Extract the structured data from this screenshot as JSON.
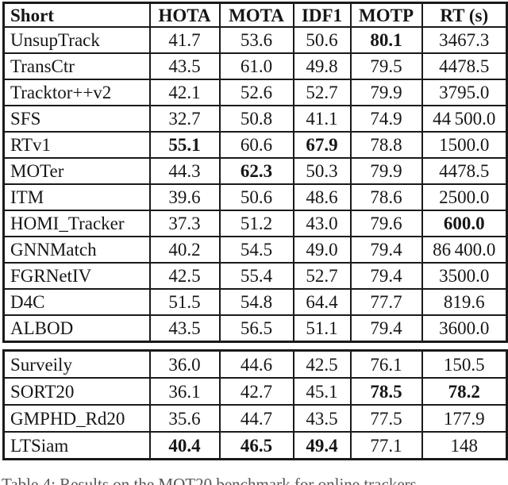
{
  "table": {
    "columns": [
      "Short",
      "HOTA",
      "MOTA",
      "IDF1",
      "MOTP",
      "RT (s)"
    ],
    "sections": [
      {
        "rows": [
          {
            "name": "UnsupTrack",
            "values": [
              "41.7",
              "53.6",
              "50.6",
              "80.1",
              "3467.3"
            ],
            "bold": [
              3
            ]
          },
          {
            "name": "TransCtr",
            "values": [
              "43.5",
              "61.0",
              "49.8",
              "79.5",
              "4478.5"
            ],
            "bold": []
          },
          {
            "name": "Tracktor++v2",
            "values": [
              "42.1",
              "52.6",
              "52.7",
              "79.9",
              "3795.0"
            ],
            "bold": []
          },
          {
            "name": "SFS",
            "values": [
              "32.7",
              "50.8",
              "41.1",
              "74.9",
              "44 500.0"
            ],
            "bold": []
          },
          {
            "name": "RTv1",
            "values": [
              "55.1",
              "60.6",
              "67.9",
              "78.8",
              "1500.0"
            ],
            "bold": [
              0,
              2
            ]
          },
          {
            "name": "MOTer",
            "values": [
              "44.3",
              "62.3",
              "50.3",
              "79.9",
              "4478.5"
            ],
            "bold": [
              1
            ]
          },
          {
            "name": "ITM",
            "values": [
              "39.6",
              "50.6",
              "48.6",
              "78.6",
              "2500.0"
            ],
            "bold": []
          },
          {
            "name": "HOMI_Tracker",
            "values": [
              "37.3",
              "51.2",
              "43.0",
              "79.6",
              "600.0"
            ],
            "bold": [
              4
            ]
          },
          {
            "name": "GNNMatch",
            "values": [
              "40.2",
              "54.5",
              "49.0",
              "79.4",
              "86 400.0"
            ],
            "bold": []
          },
          {
            "name": "FGRNetIV",
            "values": [
              "42.5",
              "55.4",
              "52.7",
              "79.4",
              "3500.0"
            ],
            "bold": []
          },
          {
            "name": "D4C",
            "values": [
              "51.5",
              "54.8",
              "64.4",
              "77.7",
              "819.6"
            ],
            "bold": []
          },
          {
            "name": "ALBOD",
            "values": [
              "43.5",
              "56.5",
              "51.1",
              "79.4",
              "3600.0"
            ],
            "bold": []
          }
        ]
      },
      {
        "rows": [
          {
            "name": "Surveily",
            "values": [
              "36.0",
              "44.6",
              "42.5",
              "76.1",
              "150.5"
            ],
            "bold": []
          },
          {
            "name": "SORT20",
            "values": [
              "36.1",
              "42.7",
              "45.1",
              "78.5",
              "78.2"
            ],
            "bold": [
              3,
              4
            ]
          },
          {
            "name": "GMPHD_Rd20",
            "values": [
              "35.6",
              "44.7",
              "43.5",
              "77.5",
              "177.9"
            ],
            "bold": []
          },
          {
            "name": "LTSiam",
            "values": [
              "40.4",
              "46.5",
              "49.4",
              "77.1",
              "148"
            ],
            "bold": [
              0,
              1,
              2
            ]
          }
        ]
      }
    ]
  },
  "caption": "Table 4: Results on the MOT20 benchmark for online trackers"
}
